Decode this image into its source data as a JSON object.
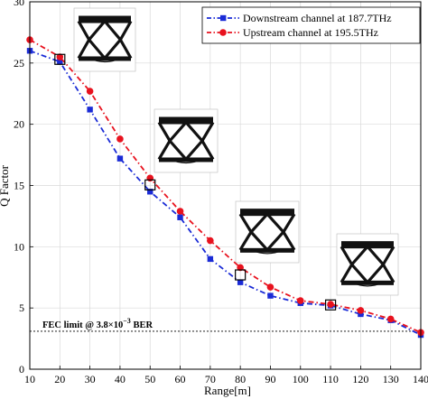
{
  "chart_data": {
    "type": "line",
    "xlabel": "Range[m]",
    "ylabel": "Q Factor",
    "xlim": [
      10,
      140
    ],
    "ylim": [
      0,
      30
    ],
    "xticks": [
      10,
      20,
      30,
      40,
      50,
      60,
      70,
      80,
      90,
      100,
      110,
      120,
      130,
      140
    ],
    "yticks": [
      0,
      5,
      10,
      15,
      20,
      25,
      30
    ],
    "grid": true,
    "legend_position": "top-right",
    "series": [
      {
        "name": "Downstream channel at 187.7THz",
        "color": "#1a2bd6",
        "marker": "square",
        "linestyle": "dash-dot",
        "x": [
          10,
          20,
          30,
          40,
          50,
          60,
          70,
          80,
          90,
          100,
          110,
          120,
          130,
          140
        ],
        "y": [
          26.0,
          25.1,
          21.2,
          17.2,
          14.5,
          12.4,
          9.0,
          7.1,
          6.0,
          5.4,
          5.2,
          4.5,
          4.0,
          2.8
        ]
      },
      {
        "name": "Upstream channel at 195.5THz",
        "color": "#e8121e",
        "marker": "circle",
        "linestyle": "dash-dot",
        "x": [
          10,
          20,
          30,
          40,
          50,
          60,
          70,
          80,
          90,
          100,
          110,
          120,
          130,
          140
        ],
        "y": [
          26.9,
          25.5,
          22.7,
          18.8,
          15.6,
          12.9,
          10.5,
          8.3,
          6.7,
          5.6,
          5.3,
          4.8,
          4.1,
          3.0
        ]
      }
    ],
    "highlighted_x": [
      20,
      50,
      80,
      110
    ],
    "threshold": {
      "y": 3.1,
      "label_prefix": "FEC limit @ 3.8×10",
      "label_exp": "−3",
      "label_suffix": " BER"
    }
  }
}
